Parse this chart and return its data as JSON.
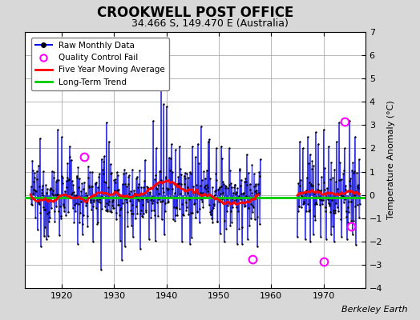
{
  "title": "CROOKWELL POST OFFICE",
  "subtitle": "34.466 S, 149.470 E (Australia)",
  "ylabel": "Temperature Anomaly (°C)",
  "credit": "Berkeley Earth",
  "ylim": [
    -4,
    7
  ],
  "yticks": [
    -4,
    -3,
    -2,
    -1,
    0,
    1,
    2,
    3,
    4,
    5,
    6,
    7
  ],
  "xlim": [
    1913.0,
    1978.0
  ],
  "xticks": [
    1920,
    1930,
    1940,
    1950,
    1960,
    1970
  ],
  "bg_color": "#d8d8d8",
  "plot_bg_color": "#ffffff",
  "grid_color": "#b0b0b0",
  "long_term_trend_y": -0.1,
  "seed": 12345,
  "figsize": [
    5.24,
    4.0
  ],
  "dpi": 100
}
